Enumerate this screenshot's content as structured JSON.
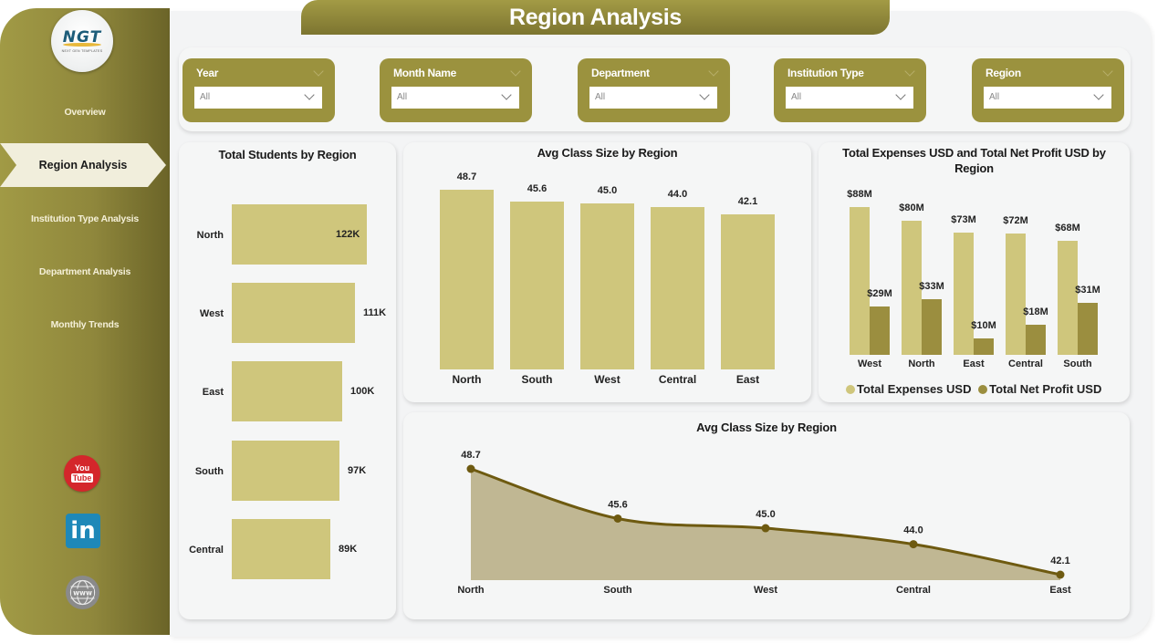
{
  "header": {
    "title": "Region Analysis"
  },
  "logo": {
    "text": "NGT",
    "subtitle": "NEXT GEN TEMPLATES"
  },
  "sidebar": {
    "items": [
      {
        "label": "Overview",
        "active": false
      },
      {
        "label": "Region Analysis",
        "active": true
      },
      {
        "label": "Institution Type Analysis",
        "active": false
      },
      {
        "label": "Department Analysis",
        "active": false
      },
      {
        "label": "Monthly Trends",
        "active": false
      }
    ],
    "social": [
      {
        "name": "youtube-icon",
        "top": "You",
        "bottom": "Tube"
      },
      {
        "name": "linkedin-icon",
        "text": "in"
      },
      {
        "name": "website-icon",
        "text": "www"
      }
    ]
  },
  "filters": [
    {
      "label": "Year",
      "value": "All"
    },
    {
      "label": "Month Name",
      "value": "All"
    },
    {
      "label": "Department",
      "value": "All"
    },
    {
      "label": "Institution Type",
      "value": "All"
    },
    {
      "label": "Region",
      "value": "All"
    }
  ],
  "colors": {
    "sidebar": "#9b923e",
    "bar_light": "#cfc67c",
    "bar_dark": "#9b8e3f",
    "area_fill": "#c0b793",
    "line": "#6e5a10",
    "active_nav": "#f1eedc"
  },
  "chart_data": [
    {
      "type": "bar",
      "orientation": "horizontal",
      "title": "Total Students by Region",
      "categories": [
        "North",
        "West",
        "East",
        "South",
        "Central"
      ],
      "values": [
        122000,
        111000,
        100000,
        97000,
        89000
      ],
      "labels": [
        "122K",
        "111K",
        "100K",
        "97K",
        "89K"
      ],
      "xlabel": "",
      "ylabel": ""
    },
    {
      "type": "bar",
      "title": "Avg Class Size by Region",
      "categories": [
        "North",
        "South",
        "West",
        "Central",
        "East"
      ],
      "values": [
        48.7,
        45.6,
        45.0,
        44.0,
        42.1
      ],
      "labels": [
        "48.7",
        "45.6",
        "45.0",
        "44.0",
        "42.1"
      ],
      "xlabel": "",
      "ylabel": ""
    },
    {
      "type": "bar",
      "title": "Total Expenses USD and Total Net Profit USD by Region",
      "categories": [
        "West",
        "North",
        "East",
        "Central",
        "South"
      ],
      "series": [
        {
          "name": "Total Expenses USD",
          "values": [
            88,
            80,
            73,
            72,
            68
          ],
          "labels": [
            "$88M",
            "$80M",
            "$73M",
            "$72M",
            "$68M"
          ]
        },
        {
          "name": "Total Net Profit USD",
          "values": [
            29,
            33,
            10,
            18,
            31
          ],
          "labels": [
            "$29M",
            "$33M",
            "$10M",
            "$18M",
            "$31M"
          ]
        }
      ],
      "unit": "USD millions",
      "legend_position": "bottom"
    },
    {
      "type": "area",
      "title": "Avg Class Size by Region",
      "categories": [
        "North",
        "South",
        "West",
        "Central",
        "East"
      ],
      "values": [
        48.7,
        45.6,
        45.0,
        44.0,
        42.1
      ],
      "labels": [
        "48.7",
        "45.6",
        "45.0",
        "44.0",
        "42.1"
      ]
    }
  ]
}
